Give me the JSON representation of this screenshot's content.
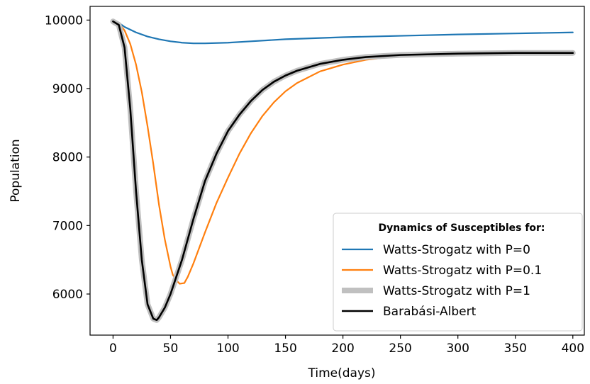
{
  "chart_data": {
    "type": "line",
    "xlabel": "Time(days)",
    "ylabel": "Population",
    "xlim": [
      -20,
      410
    ],
    "ylim": [
      5400,
      10200
    ],
    "xticks": [
      0,
      50,
      100,
      150,
      200,
      250,
      300,
      350,
      400
    ],
    "yticks": [
      6000,
      7000,
      8000,
      9000,
      10000
    ],
    "legend": {
      "title": "Dynamics of Susceptibles for:",
      "placement": "lower-right"
    },
    "series": [
      {
        "name": "Watts-Strogatz with P=0",
        "color": "#1f77b4",
        "x": [
          0,
          5,
          10,
          20,
          30,
          40,
          50,
          60,
          70,
          80,
          100,
          120,
          150,
          200,
          250,
          300,
          350,
          400
        ],
        "y": [
          9980,
          9960,
          9900,
          9820,
          9760,
          9720,
          9690,
          9670,
          9660,
          9660,
          9670,
          9690,
          9720,
          9750,
          9770,
          9790,
          9805,
          9820
        ]
      },
      {
        "name": "Watts-Strogatz with P=0.1",
        "color": "#ff7f0e",
        "x": [
          0,
          5,
          10,
          15,
          20,
          25,
          30,
          35,
          40,
          45,
          50,
          52,
          55,
          58,
          62,
          65,
          70,
          80,
          90,
          100,
          110,
          120,
          130,
          140,
          150,
          160,
          180,
          200,
          220,
          250,
          300,
          350,
          400
        ],
        "y": [
          9980,
          9950,
          9850,
          9650,
          9350,
          8950,
          8450,
          7900,
          7300,
          6800,
          6400,
          6280,
          6200,
          6150,
          6160,
          6250,
          6450,
          6900,
          7330,
          7700,
          8050,
          8350,
          8600,
          8800,
          8960,
          9080,
          9250,
          9350,
          9420,
          9480,
          9510,
          9520,
          9520
        ]
      },
      {
        "name": "Watts-Strogatz with P=1",
        "color": "#c0c0c0",
        "x": [
          0,
          5,
          10,
          15,
          20,
          25,
          30,
          35,
          38,
          40,
          45,
          50,
          55,
          60,
          70,
          80,
          90,
          100,
          110,
          120,
          130,
          140,
          150,
          160,
          180,
          200,
          220,
          250,
          300,
          350,
          400
        ],
        "y": [
          9980,
          9930,
          9600,
          8700,
          7500,
          6500,
          5850,
          5640,
          5620,
          5660,
          5800,
          6000,
          6250,
          6500,
          7100,
          7650,
          8050,
          8380,
          8620,
          8820,
          8980,
          9100,
          9190,
          9260,
          9360,
          9420,
          9460,
          9490,
          9510,
          9520,
          9520
        ]
      },
      {
        "name": "Barabási-Albert",
        "color": "#000000",
        "x": [
          0,
          5,
          10,
          15,
          20,
          25,
          30,
          35,
          38,
          40,
          45,
          50,
          55,
          60,
          70,
          80,
          90,
          100,
          110,
          120,
          130,
          140,
          150,
          160,
          180,
          200,
          220,
          250,
          300,
          350,
          400
        ],
        "y": [
          9980,
          9930,
          9600,
          8700,
          7500,
          6500,
          5850,
          5640,
          5620,
          5660,
          5800,
          6000,
          6250,
          6500,
          7100,
          7650,
          8050,
          8380,
          8620,
          8820,
          8980,
          9100,
          9190,
          9260,
          9360,
          9420,
          9460,
          9490,
          9510,
          9520,
          9520
        ]
      }
    ]
  }
}
